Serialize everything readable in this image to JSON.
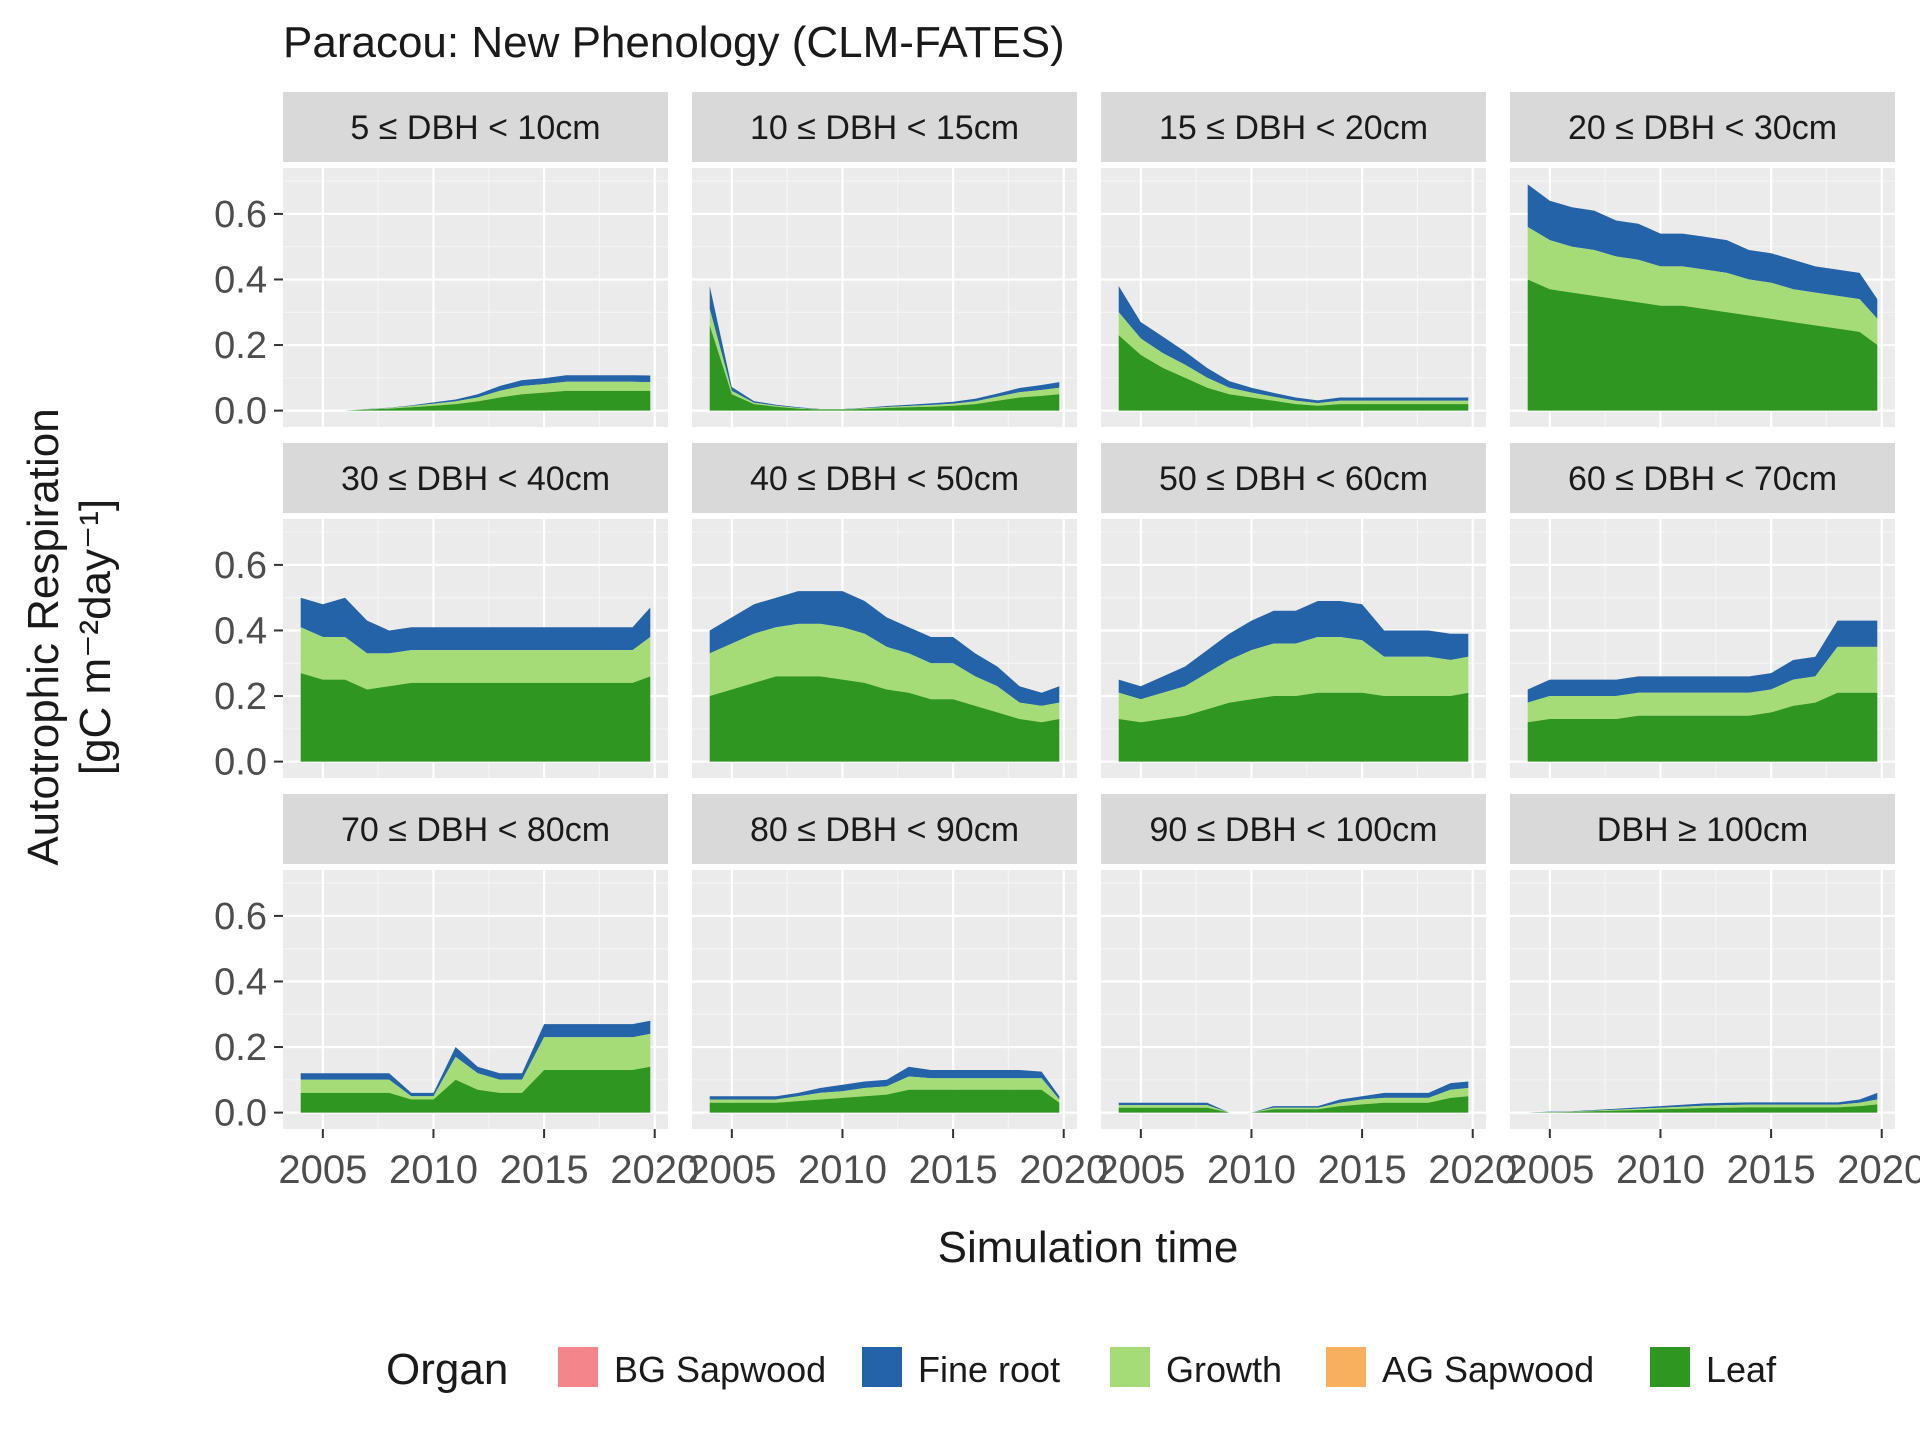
{
  "chart_data": {
    "type": "area",
    "title": "Paracou: New Phenology (CLM-FATES)",
    "xlabel": "Simulation time",
    "ylabel_line1": "Autotrophic Respiration",
    "ylabel_unit": "[gC m⁻²day⁻¹]",
    "x_ticks": [
      2005,
      2010,
      2015,
      2020
    ],
    "x_tick_labels": [
      "2005",
      "2010",
      "2015",
      "2020"
    ],
    "xlim": [
      2003.2,
      2020.6
    ],
    "y_ticks": [
      "0.0",
      "0.2",
      "0.4",
      "0.6"
    ],
    "ylim": [
      -0.05,
      0.74
    ],
    "grid": true,
    "legend": {
      "title": "Organ",
      "position": "bottom",
      "items": [
        {
          "label": "BG Sapwood",
          "color": "#F4858A"
        },
        {
          "label": "Fine root",
          "color": "#2563A8"
        },
        {
          "label": "Growth",
          "color": "#A6DC78"
        },
        {
          "label": "AG Sapwood",
          "color": "#F9B05E"
        },
        {
          "label": "Leaf",
          "color": "#2E9621"
        }
      ]
    },
    "series_order_bottom_to_top": [
      "Leaf",
      "AG Sapwood",
      "Growth",
      "Fine root",
      "BG Sapwood"
    ],
    "x": [
      2004.0,
      2005.0,
      2006.0,
      2007.0,
      2008.0,
      2009.0,
      2010.0,
      2011.0,
      2012.0,
      2013.0,
      2014.0,
      2015.0,
      2016.0,
      2017.0,
      2018.0,
      2019.0,
      2019.8
    ],
    "panels": [
      {
        "label": "5 ≤ DBH < 10cm",
        "leaf": [
          0,
          0,
          0,
          0.003,
          0.006,
          0.01,
          0.015,
          0.02,
          0.028,
          0.04,
          0.05,
          0.055,
          0.06,
          0.06,
          0.06,
          0.06,
          0.06
        ],
        "growth": [
          0,
          0,
          0,
          0.001,
          0.002,
          0.004,
          0.006,
          0.008,
          0.012,
          0.02,
          0.025,
          0.026,
          0.028,
          0.028,
          0.028,
          0.028,
          0.027
        ],
        "fine_root": [
          0,
          0,
          0,
          0.001,
          0.001,
          0.002,
          0.004,
          0.006,
          0.01,
          0.015,
          0.018,
          0.018,
          0.02,
          0.02,
          0.02,
          0.02,
          0.02
        ]
      },
      {
        "label": "10 ≤ DBH < 15cm",
        "leaf": [
          0.26,
          0.05,
          0.02,
          0.012,
          0.006,
          0.003,
          0.003,
          0.005,
          0.008,
          0.01,
          0.012,
          0.015,
          0.02,
          0.03,
          0.04,
          0.045,
          0.05
        ],
        "growth": [
          0.05,
          0.01,
          0.004,
          0.003,
          0.002,
          0.001,
          0.001,
          0.002,
          0.003,
          0.004,
          0.005,
          0.006,
          0.008,
          0.012,
          0.016,
          0.018,
          0.02
        ],
        "fine_root": [
          0.07,
          0.012,
          0.005,
          0.003,
          0.002,
          0.001,
          0.001,
          0.002,
          0.003,
          0.004,
          0.005,
          0.006,
          0.008,
          0.01,
          0.013,
          0.015,
          0.017
        ]
      },
      {
        "label": "15 ≤ DBH < 20cm",
        "leaf": [
          0.23,
          0.17,
          0.13,
          0.1,
          0.07,
          0.05,
          0.04,
          0.03,
          0.02,
          0.015,
          0.02,
          0.02,
          0.02,
          0.02,
          0.02,
          0.02,
          0.02
        ],
        "growth": [
          0.07,
          0.05,
          0.045,
          0.04,
          0.03,
          0.02,
          0.015,
          0.012,
          0.01,
          0.008,
          0.01,
          0.01,
          0.01,
          0.01,
          0.01,
          0.01,
          0.01
        ],
        "fine_root": [
          0.08,
          0.05,
          0.05,
          0.04,
          0.03,
          0.02,
          0.015,
          0.012,
          0.01,
          0.008,
          0.01,
          0.01,
          0.01,
          0.01,
          0.01,
          0.01,
          0.01
        ]
      },
      {
        "label": "20 ≤ DBH < 30cm",
        "leaf": [
          0.4,
          0.37,
          0.36,
          0.35,
          0.34,
          0.33,
          0.32,
          0.32,
          0.31,
          0.3,
          0.29,
          0.28,
          0.27,
          0.26,
          0.25,
          0.24,
          0.2
        ],
        "growth": [
          0.16,
          0.15,
          0.14,
          0.14,
          0.13,
          0.13,
          0.12,
          0.12,
          0.12,
          0.12,
          0.11,
          0.11,
          0.1,
          0.1,
          0.1,
          0.1,
          0.08
        ],
        "fine_root": [
          0.13,
          0.12,
          0.12,
          0.12,
          0.11,
          0.11,
          0.1,
          0.1,
          0.1,
          0.1,
          0.09,
          0.09,
          0.09,
          0.08,
          0.08,
          0.08,
          0.06
        ]
      },
      {
        "label": "30 ≤ DBH < 40cm",
        "leaf": [
          0.27,
          0.25,
          0.25,
          0.22,
          0.23,
          0.24,
          0.24,
          0.24,
          0.24,
          0.24,
          0.24,
          0.24,
          0.24,
          0.24,
          0.24,
          0.24,
          0.26
        ],
        "growth": [
          0.14,
          0.13,
          0.13,
          0.11,
          0.1,
          0.1,
          0.1,
          0.1,
          0.1,
          0.1,
          0.1,
          0.1,
          0.1,
          0.1,
          0.1,
          0.1,
          0.12
        ],
        "fine_root": [
          0.09,
          0.1,
          0.12,
          0.1,
          0.07,
          0.07,
          0.07,
          0.07,
          0.07,
          0.07,
          0.07,
          0.07,
          0.07,
          0.07,
          0.07,
          0.07,
          0.09
        ]
      },
      {
        "label": "40 ≤ DBH < 50cm",
        "leaf": [
          0.2,
          0.22,
          0.24,
          0.26,
          0.26,
          0.26,
          0.25,
          0.24,
          0.22,
          0.21,
          0.19,
          0.19,
          0.17,
          0.15,
          0.13,
          0.12,
          0.13
        ],
        "growth": [
          0.13,
          0.14,
          0.15,
          0.15,
          0.16,
          0.16,
          0.16,
          0.15,
          0.13,
          0.12,
          0.11,
          0.11,
          0.09,
          0.08,
          0.05,
          0.05,
          0.05
        ],
        "fine_root": [
          0.07,
          0.08,
          0.09,
          0.09,
          0.1,
          0.1,
          0.11,
          0.1,
          0.09,
          0.08,
          0.08,
          0.08,
          0.07,
          0.06,
          0.05,
          0.04,
          0.05
        ]
      },
      {
        "label": "50 ≤ DBH < 60cm",
        "leaf": [
          0.13,
          0.12,
          0.13,
          0.14,
          0.16,
          0.18,
          0.19,
          0.2,
          0.2,
          0.21,
          0.21,
          0.21,
          0.2,
          0.2,
          0.2,
          0.2,
          0.21
        ],
        "growth": [
          0.08,
          0.07,
          0.08,
          0.09,
          0.11,
          0.13,
          0.15,
          0.16,
          0.16,
          0.17,
          0.17,
          0.16,
          0.12,
          0.12,
          0.12,
          0.11,
          0.11
        ],
        "fine_root": [
          0.04,
          0.04,
          0.05,
          0.06,
          0.07,
          0.08,
          0.09,
          0.1,
          0.1,
          0.11,
          0.11,
          0.11,
          0.08,
          0.08,
          0.08,
          0.08,
          0.07
        ]
      },
      {
        "label": "60 ≤ DBH < 70cm",
        "leaf": [
          0.12,
          0.13,
          0.13,
          0.13,
          0.13,
          0.14,
          0.14,
          0.14,
          0.14,
          0.14,
          0.14,
          0.15,
          0.17,
          0.18,
          0.21,
          0.21,
          0.21
        ],
        "growth": [
          0.06,
          0.07,
          0.07,
          0.07,
          0.07,
          0.07,
          0.07,
          0.07,
          0.07,
          0.07,
          0.07,
          0.07,
          0.08,
          0.08,
          0.14,
          0.14,
          0.14
        ],
        "fine_root": [
          0.04,
          0.05,
          0.05,
          0.05,
          0.05,
          0.05,
          0.05,
          0.05,
          0.05,
          0.05,
          0.05,
          0.05,
          0.06,
          0.06,
          0.08,
          0.08,
          0.08
        ]
      },
      {
        "label": "70 ≤ DBH < 80cm",
        "leaf": [
          0.06,
          0.06,
          0.06,
          0.06,
          0.06,
          0.04,
          0.04,
          0.1,
          0.07,
          0.06,
          0.06,
          0.13,
          0.13,
          0.13,
          0.13,
          0.13,
          0.14
        ],
        "growth": [
          0.04,
          0.04,
          0.04,
          0.04,
          0.04,
          0.01,
          0.01,
          0.07,
          0.05,
          0.04,
          0.04,
          0.1,
          0.1,
          0.1,
          0.1,
          0.1,
          0.1
        ],
        "fine_root": [
          0.02,
          0.02,
          0.02,
          0.02,
          0.02,
          0.01,
          0.01,
          0.03,
          0.02,
          0.02,
          0.02,
          0.04,
          0.04,
          0.04,
          0.04,
          0.04,
          0.04
        ]
      },
      {
        "label": "80 ≤ DBH < 90cm",
        "leaf": [
          0.03,
          0.03,
          0.03,
          0.03,
          0.035,
          0.04,
          0.045,
          0.05,
          0.055,
          0.07,
          0.07,
          0.07,
          0.07,
          0.07,
          0.07,
          0.07,
          0.03
        ],
        "growth": [
          0.01,
          0.01,
          0.01,
          0.01,
          0.015,
          0.02,
          0.02,
          0.025,
          0.025,
          0.04,
          0.035,
          0.035,
          0.035,
          0.035,
          0.035,
          0.035,
          0.01
        ],
        "fine_root": [
          0.01,
          0.01,
          0.01,
          0.01,
          0.01,
          0.015,
          0.02,
          0.02,
          0.02,
          0.03,
          0.025,
          0.025,
          0.025,
          0.025,
          0.025,
          0.02,
          0.01
        ]
      },
      {
        "label": "90 ≤ DBH < 100cm",
        "leaf": [
          0.015,
          0.015,
          0.015,
          0.015,
          0.015,
          0.0,
          0.0,
          0.01,
          0.01,
          0.01,
          0.02,
          0.025,
          0.03,
          0.03,
          0.03,
          0.045,
          0.05
        ],
        "growth": [
          0.008,
          0.008,
          0.008,
          0.008,
          0.008,
          0.0,
          0.0,
          0.005,
          0.005,
          0.005,
          0.01,
          0.015,
          0.015,
          0.015,
          0.015,
          0.025,
          0.025
        ],
        "fine_root": [
          0.007,
          0.007,
          0.007,
          0.007,
          0.007,
          0.0,
          0.0,
          0.005,
          0.005,
          0.005,
          0.01,
          0.01,
          0.015,
          0.015,
          0.015,
          0.02,
          0.02
        ]
      },
      {
        "label": "DBH ≥ 100cm",
        "leaf": [
          0.0,
          0.001,
          0.002,
          0.004,
          0.006,
          0.008,
          0.01,
          0.012,
          0.014,
          0.015,
          0.016,
          0.016,
          0.016,
          0.016,
          0.016,
          0.02,
          0.025
        ],
        "growth": [
          0.0,
          0.001,
          0.001,
          0.002,
          0.003,
          0.004,
          0.005,
          0.006,
          0.007,
          0.008,
          0.008,
          0.008,
          0.008,
          0.008,
          0.008,
          0.01,
          0.015
        ],
        "fine_root": [
          0.0,
          0.001,
          0.001,
          0.002,
          0.003,
          0.004,
          0.005,
          0.006,
          0.007,
          0.007,
          0.007,
          0.007,
          0.007,
          0.007,
          0.007,
          0.01,
          0.02
        ]
      }
    ]
  }
}
